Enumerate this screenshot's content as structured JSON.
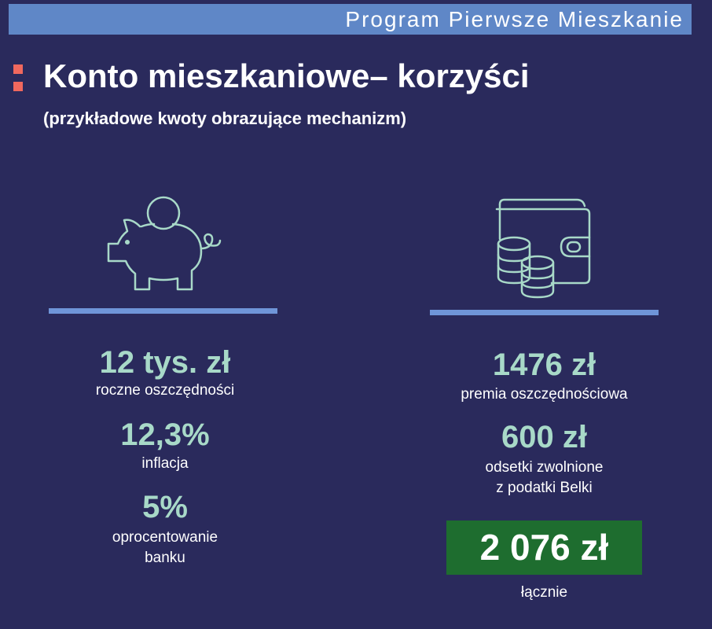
{
  "header": {
    "banner_text": "Program Pierwsze Mieszkanie"
  },
  "slide": {
    "title": "Konto mieszkaniowe– korzyści",
    "subtitle": "(przykładowe kwoty obrazujące mechanizm)"
  },
  "left_column": {
    "icon": "piggy-bank-icon",
    "items": [
      {
        "value": "12 tys. zł",
        "label": "roczne oszczędności"
      },
      {
        "value": "12,3%",
        "label": "inflacja"
      },
      {
        "value": "5%",
        "label_line1": "oprocentowanie",
        "label_line2": "banku"
      }
    ]
  },
  "right_column": {
    "icon": "wallet-coins-icon",
    "items": [
      {
        "value": "1476 zł",
        "label": "premia oszczędnościowa"
      },
      {
        "value": "600 zł",
        "label_line1": "odsetki zwolnione",
        "label_line2": "z podatki Belki"
      }
    ],
    "total": {
      "value": "2 076 zł",
      "label": "łącznie"
    }
  },
  "colors": {
    "background": "#2a2a5c",
    "banner": "#5f87c7",
    "accent_values": "#a8d9c8",
    "bullet": "#f0685e",
    "total_box": "#1e6d2f",
    "icon_stroke": "#a8d9c8"
  }
}
